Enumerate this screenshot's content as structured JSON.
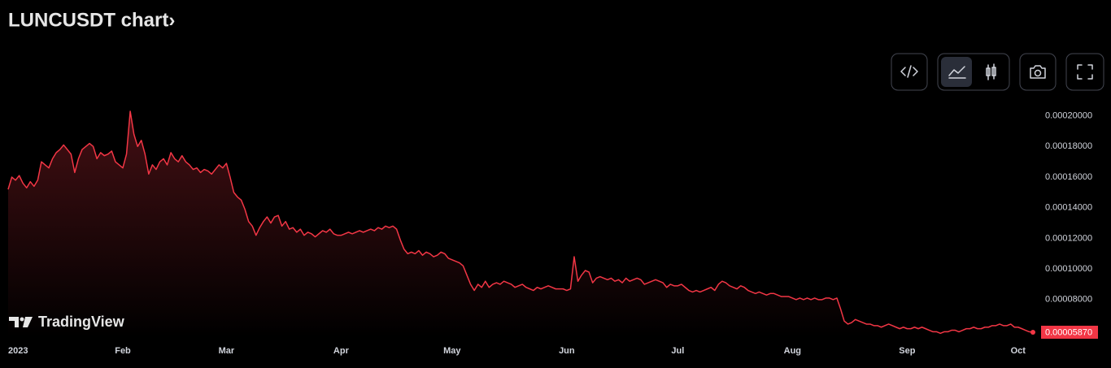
{
  "chart_data": {
    "type": "line",
    "title": "LUNCUSDT chart›",
    "brand": "TradingView",
    "color": "#f23645",
    "categories": [
      "2023",
      null,
      null,
      null,
      null,
      null,
      null,
      null,
      null,
      null,
      null,
      null,
      null,
      null,
      null,
      null,
      null,
      null,
      null,
      null,
      null,
      null,
      null,
      null,
      null,
      null,
      null,
      null,
      null,
      null,
      null,
      "Feb",
      null,
      null,
      null,
      null,
      null,
      null,
      null,
      null,
      null,
      null,
      null,
      null,
      null,
      null,
      null,
      null,
      null,
      null,
      null,
      null,
      null,
      null,
      null,
      null,
      null,
      null,
      null,
      "Mar",
      null,
      null,
      null,
      null,
      null,
      null,
      null,
      null,
      null,
      null,
      null,
      null,
      null,
      null,
      null,
      null,
      null,
      null,
      null,
      null,
      null,
      null,
      null,
      null,
      null,
      null,
      null,
      null,
      null,
      null,
      "Apr",
      null,
      null,
      null,
      null,
      null,
      null,
      null,
      null,
      null,
      null,
      null,
      null,
      null,
      null,
      null,
      null,
      null,
      null,
      null,
      null,
      null,
      null,
      null,
      null,
      null,
      null,
      null,
      null,
      null,
      "May",
      null,
      null,
      null,
      null,
      null,
      null,
      null,
      null,
      null,
      null,
      null,
      null,
      null,
      null,
      null,
      null,
      null,
      null,
      null,
      null,
      null,
      null,
      null,
      null,
      null,
      null,
      null,
      null,
      null,
      null,
      "Jun",
      null,
      null,
      null,
      null,
      null,
      null,
      null,
      null,
      null,
      null,
      null,
      null,
      null,
      null,
      null,
      null,
      null,
      null,
      null,
      null,
      null,
      null,
      null,
      null,
      null,
      null,
      null,
      null,
      null,
      "Jul",
      null,
      null,
      null,
      null,
      null,
      null,
      null,
      null,
      null,
      null,
      null,
      null,
      null,
      null,
      null,
      null,
      null,
      null,
      null,
      null,
      null,
      null,
      null,
      null,
      null,
      null,
      null,
      null,
      null,
      null,
      "Aug",
      null,
      null,
      null,
      null,
      null,
      null,
      null,
      null,
      null,
      null,
      null,
      null,
      null,
      null,
      null,
      null,
      null,
      null,
      null,
      null,
      null,
      null,
      null,
      null,
      null,
      null,
      null,
      null,
      null,
      null,
      "Sep",
      null,
      null,
      null,
      null,
      null,
      null,
      null,
      null,
      null,
      null,
      null,
      null,
      null,
      null,
      null,
      null,
      null,
      null,
      null,
      null,
      null,
      null,
      null,
      null,
      null,
      null,
      null,
      null,
      null,
      "Oct",
      null,
      null,
      null,
      null
    ],
    "values": [
      0.000152,
      0.00016,
      0.000158,
      0.000161,
      0.000156,
      0.000153,
      0.000157,
      0.000154,
      0.000158,
      0.00017,
      0.000168,
      0.000166,
      0.000172,
      0.000176,
      0.000178,
      0.000181,
      0.000178,
      0.000175,
      0.000163,
      0.000172,
      0.000178,
      0.00018,
      0.000182,
      0.00018,
      0.000172,
      0.000176,
      0.000174,
      0.000175,
      0.000177,
      0.00017,
      0.000168,
      0.000166,
      0.000175,
      0.000203,
      0.000188,
      0.00018,
      0.000184,
      0.000175,
      0.000162,
      0.000168,
      0.000165,
      0.00017,
      0.000172,
      0.000168,
      0.000176,
      0.000172,
      0.00017,
      0.000174,
      0.00017,
      0.000168,
      0.000165,
      0.000166,
      0.000163,
      0.000165,
      0.000164,
      0.000162,
      0.000165,
      0.000168,
      0.000166,
      0.000169,
      0.00016,
      0.00015,
      0.000147,
      0.000145,
      0.000139,
      0.000131,
      0.000128,
      0.000122,
      0.000127,
      0.000131,
      0.000134,
      0.00013,
      0.000134,
      0.000135,
      0.000128,
      0.000131,
      0.000126,
      0.000127,
      0.000124,
      0.000126,
      0.000122,
      0.000124,
      0.000123,
      0.000121,
      0.000123,
      0.000125,
      0.000124,
      0.000126,
      0.000123,
      0.000122,
      0.000122,
      0.000123,
      0.000124,
      0.000123,
      0.000124,
      0.000125,
      0.000124,
      0.000125,
      0.000126,
      0.000125,
      0.000127,
      0.000126,
      0.000128,
      0.000127,
      0.000128,
      0.000126,
      0.000119,
      0.000113,
      0.00011,
      0.000111,
      0.00011,
      0.000112,
      0.000109,
      0.000111,
      0.00011,
      0.000108,
      0.000109,
      0.000111,
      0.00011,
      0.000107,
      0.000106,
      0.000105,
      0.000104,
      0.000102,
      9.6e-05,
      9e-05,
      8.6e-05,
      9e-05,
      8.8e-05,
      9.2e-05,
      8.8e-05,
      9e-05,
      9.1e-05,
      9e-05,
      9.2e-05,
      9.1e-05,
      9e-05,
      8.8e-05,
      8.9e-05,
      9e-05,
      8.8e-05,
      8.7e-05,
      8.6e-05,
      8.8e-05,
      8.7e-05,
      8.8e-05,
      8.9e-05,
      8.8e-05,
      8.7e-05,
      8.7e-05,
      8.7e-05,
      8.6e-05,
      8.7e-05,
      0.000108,
      9.2e-05,
      9.6e-05,
      9.9e-05,
      9.8e-05,
      9.1e-05,
      9.4e-05,
      9.5e-05,
      9.4e-05,
      9.3e-05,
      9.4e-05,
      9.2e-05,
      9.3e-05,
      9.1e-05,
      9.4e-05,
      9.2e-05,
      9.3e-05,
      9.4e-05,
      9.3e-05,
      9e-05,
      9.1e-05,
      9.2e-05,
      9.3e-05,
      9.2e-05,
      9.1e-05,
      8.8e-05,
      9e-05,
      8.9e-05,
      8.9e-05,
      9e-05,
      8.8e-05,
      8.6e-05,
      8.5e-05,
      8.6e-05,
      8.5e-05,
      8.6e-05,
      8.7e-05,
      8.8e-05,
      8.6e-05,
      9e-05,
      9.2e-05,
      9.1e-05,
      8.9e-05,
      8.8e-05,
      8.7e-05,
      8.9e-05,
      8.8e-05,
      8.6e-05,
      8.5e-05,
      8.4e-05,
      8.5e-05,
      8.4e-05,
      8.3e-05,
      8.4e-05,
      8.4e-05,
      8.3e-05,
      8.2e-05,
      8.2e-05,
      8.2e-05,
      8.1e-05,
      8e-05,
      8.1e-05,
      8e-05,
      8.1e-05,
      8e-05,
      8.1e-05,
      8e-05,
      8e-05,
      8.1e-05,
      8.1e-05,
      8e-05,
      8.1e-05,
      7.4e-05,
      6.6e-05,
      6.4e-05,
      6.5e-05,
      6.7e-05,
      6.6e-05,
      6.5e-05,
      6.4e-05,
      6.4e-05,
      6.3e-05,
      6.3e-05,
      6.2e-05,
      6.3e-05,
      6.4e-05,
      6.3e-05,
      6.2e-05,
      6.1e-05,
      6.2e-05,
      6.1e-05,
      6.1e-05,
      6.2e-05,
      6.1e-05,
      6.2e-05,
      6.1e-05,
      6e-05,
      5.9e-05,
      5.9e-05,
      5.8e-05,
      5.9e-05,
      5.9e-05,
      6e-05,
      6e-05,
      5.9e-05,
      6e-05,
      6.1e-05,
      6.1e-05,
      6.2e-05,
      6.1e-05,
      6.1e-05,
      6.2e-05,
      6.2e-05,
      6.3e-05,
      6.3e-05,
      6.4e-05,
      6.3e-05,
      6.3e-05,
      6.4e-05,
      6.2e-05,
      6.2e-05,
      6.1e-05,
      6e-05,
      5.9e-05,
      5.87e-05
    ],
    "last_price": {
      "value": 5.87e-05,
      "label": "0.00005870"
    },
    "ylim": [
      5.55e-05,
      0.000212
    ],
    "yticks": [
      {
        "value": 8e-05,
        "label": "0.00008000"
      },
      {
        "value": 0.0001,
        "label": "0.00010000"
      },
      {
        "value": 0.00012,
        "label": "0.00012000"
      },
      {
        "value": 0.00014,
        "label": "0.00014000"
      },
      {
        "value": 0.00016,
        "label": "0.00016000"
      },
      {
        "value": 0.00018,
        "label": "0.00018000"
      },
      {
        "value": 0.0002,
        "label": "0.00020000"
      }
    ],
    "grid": false
  }
}
